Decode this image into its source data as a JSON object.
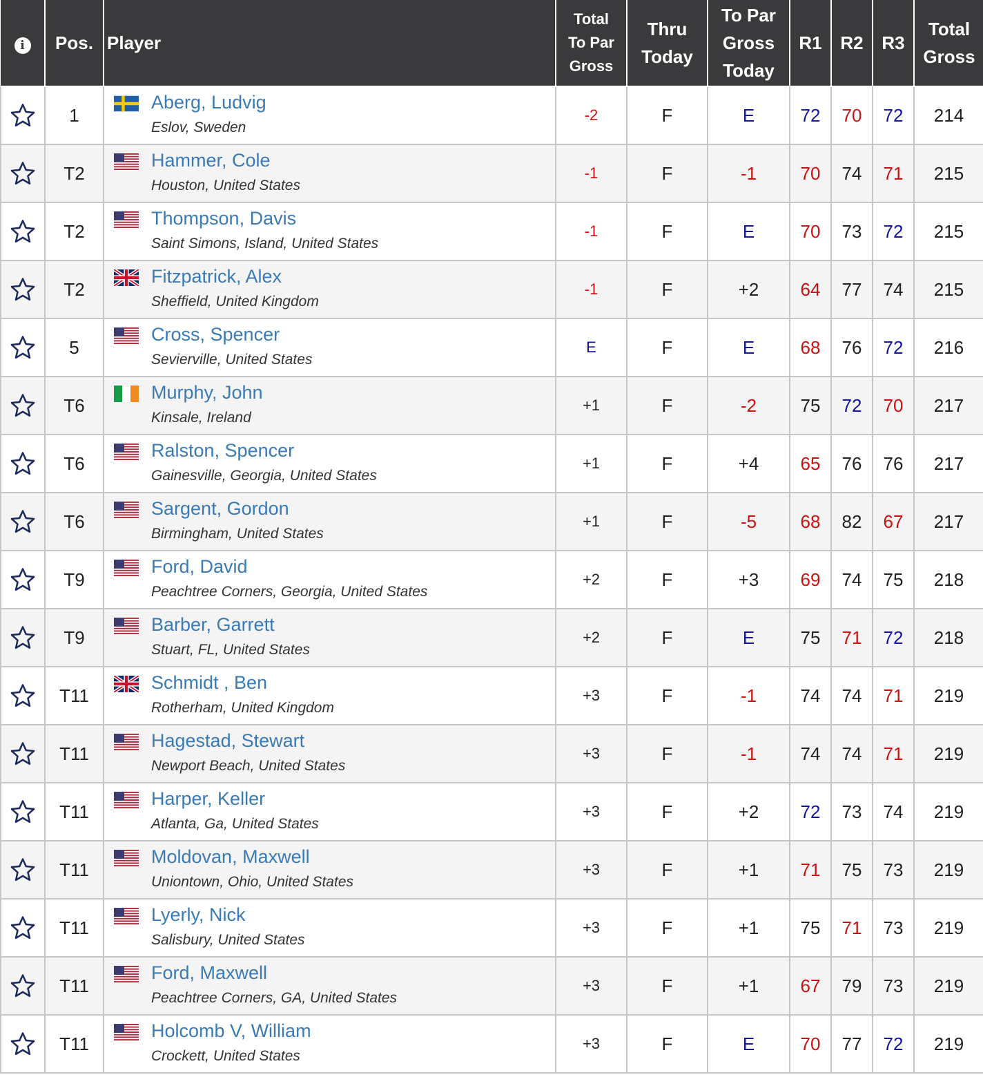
{
  "header": {
    "info_icon": "i",
    "pos": "Pos.",
    "player": "Player",
    "total_to_par": [
      "Total",
      "To Par",
      "Gross"
    ],
    "thru": [
      "Thru",
      "Today"
    ],
    "to_par_today": [
      "To Par",
      "Gross",
      "Today"
    ],
    "r1": "R1",
    "r2": "R2",
    "r3": "R3",
    "total_gross": [
      "Total",
      "Gross"
    ]
  },
  "colors": {
    "header_bg": "#3a3a3c",
    "player_link": "#3a7ab5",
    "under_par": "#cc1111",
    "even_par": "#1414a0",
    "star_outline": "#1b2b5c"
  },
  "rows": [
    {
      "pos": "1",
      "flag": "sweden",
      "name": "Aberg, Ludvig",
      "location": "Eslov, Sweden",
      "total": "-2",
      "thru": "F",
      "today": "E",
      "r1": "72",
      "r2": "70",
      "r3": "72",
      "gross": "214"
    },
    {
      "pos": "T2",
      "flag": "usa",
      "name": "Hammer, Cole",
      "location": "Houston, United States",
      "total": "-1",
      "thru": "F",
      "today": "-1",
      "r1": "70",
      "r2": "74",
      "r3": "71",
      "gross": "215"
    },
    {
      "pos": "T2",
      "flag": "usa",
      "name": "Thompson, Davis",
      "location": "Saint Simons, Island, United States",
      "total": "-1",
      "thru": "F",
      "today": "E",
      "r1": "70",
      "r2": "73",
      "r3": "72",
      "gross": "215"
    },
    {
      "pos": "T2",
      "flag": "uk",
      "name": "Fitzpatrick, Alex",
      "location": "Sheffield, United Kingdom",
      "total": "-1",
      "thru": "F",
      "today": "+2",
      "r1": "64",
      "r2": "77",
      "r3": "74",
      "gross": "215"
    },
    {
      "pos": "5",
      "flag": "usa",
      "name": "Cross, Spencer",
      "location": "Sevierville, United States",
      "total": "E",
      "thru": "F",
      "today": "E",
      "r1": "68",
      "r2": "76",
      "r3": "72",
      "gross": "216"
    },
    {
      "pos": "T6",
      "flag": "ireland",
      "name": "Murphy, John",
      "location": "Kinsale, Ireland",
      "total": "+1",
      "thru": "F",
      "today": "-2",
      "r1": "75",
      "r2": "72",
      "r3": "70",
      "gross": "217"
    },
    {
      "pos": "T6",
      "flag": "usa",
      "name": "Ralston, Spencer",
      "location": "Gainesville, Georgia, United States",
      "total": "+1",
      "thru": "F",
      "today": "+4",
      "r1": "65",
      "r2": "76",
      "r3": "76",
      "gross": "217"
    },
    {
      "pos": "T6",
      "flag": "usa",
      "name": "Sargent, Gordon",
      "location": "Birmingham, United States",
      "total": "+1",
      "thru": "F",
      "today": "-5",
      "r1": "68",
      "r2": "82",
      "r3": "67",
      "gross": "217"
    },
    {
      "pos": "T9",
      "flag": "usa",
      "name": "Ford, David",
      "location": "Peachtree Corners, Georgia, United States",
      "total": "+2",
      "thru": "F",
      "today": "+3",
      "r1": "69",
      "r2": "74",
      "r3": "75",
      "gross": "218"
    },
    {
      "pos": "T9",
      "flag": "usa",
      "name": "Barber, Garrett",
      "location": "Stuart, FL, United States",
      "total": "+2",
      "thru": "F",
      "today": "E",
      "r1": "75",
      "r2": "71",
      "r3": "72",
      "gross": "218"
    },
    {
      "pos": "T11",
      "flag": "uk",
      "name": "Schmidt , Ben",
      "location": "Rotherham, United Kingdom",
      "total": "+3",
      "thru": "F",
      "today": "-1",
      "r1": "74",
      "r2": "74",
      "r3": "71",
      "gross": "219"
    },
    {
      "pos": "T11",
      "flag": "usa",
      "name": "Hagestad, Stewart",
      "location": "Newport Beach, United States",
      "total": "+3",
      "thru": "F",
      "today": "-1",
      "r1": "74",
      "r2": "74",
      "r3": "71",
      "gross": "219"
    },
    {
      "pos": "T11",
      "flag": "usa",
      "name": "Harper, Keller",
      "location": "Atlanta, Ga, United States",
      "total": "+3",
      "thru": "F",
      "today": "+2",
      "r1": "72",
      "r2": "73",
      "r3": "74",
      "gross": "219"
    },
    {
      "pos": "T11",
      "flag": "usa",
      "name": "Moldovan, Maxwell",
      "location": "Uniontown, Ohio, United States",
      "total": "+3",
      "thru": "F",
      "today": "+1",
      "r1": "71",
      "r2": "75",
      "r3": "73",
      "gross": "219"
    },
    {
      "pos": "T11",
      "flag": "usa",
      "name": "Lyerly, Nick",
      "location": "Salisbury, United States",
      "total": "+3",
      "thru": "F",
      "today": "+1",
      "r1": "75",
      "r2": "71",
      "r3": "73",
      "gross": "219"
    },
    {
      "pos": "T11",
      "flag": "usa",
      "name": "Ford, Maxwell",
      "location": "Peachtree Corners, GA, United States",
      "total": "+3",
      "thru": "F",
      "today": "+1",
      "r1": "67",
      "r2": "79",
      "r3": "73",
      "gross": "219"
    },
    {
      "pos": "T11",
      "flag": "usa",
      "name": "Holcomb V, William",
      "location": "Crockett, United States",
      "total": "+3",
      "thru": "F",
      "today": "E",
      "r1": "70",
      "r2": "77",
      "r3": "72",
      "gross": "219"
    }
  ]
}
